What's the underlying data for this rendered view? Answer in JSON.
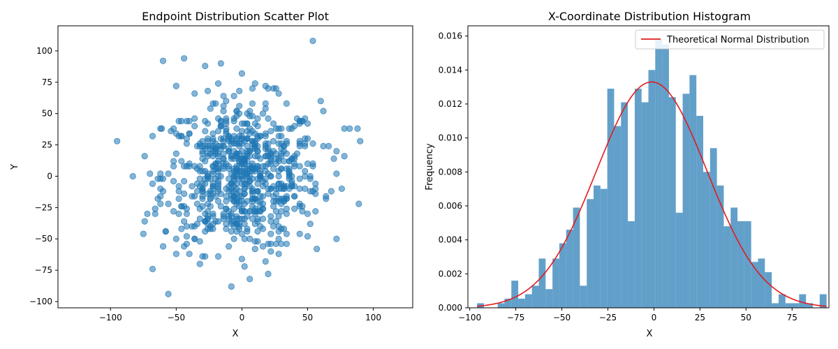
{
  "chart_data": [
    {
      "type": "scatter",
      "title": "Endpoint Distribution Scatter Plot",
      "xlabel": "X",
      "ylabel": "Y",
      "xlim": [
        -140,
        130
      ],
      "ylim": [
        -105,
        120
      ],
      "xticks": [
        -100,
        -50,
        0,
        50,
        100
      ],
      "yticks": [
        -100,
        -75,
        -50,
        -25,
        0,
        25,
        50,
        75,
        100
      ],
      "grid": false,
      "point_color": "#1f77b4",
      "point_alpha": 0.55,
      "outliers": [
        {
          "x": 54,
          "y": 108
        },
        {
          "x": -60,
          "y": 92
        },
        {
          "x": -44,
          "y": 94
        },
        {
          "x": -28,
          "y": 88
        },
        {
          "x": -16,
          "y": 90
        },
        {
          "x": -50,
          "y": 72
        },
        {
          "x": 0,
          "y": 82
        },
        {
          "x": -56,
          "y": -94
        },
        {
          "x": -68,
          "y": -74
        },
        {
          "x": -8,
          "y": -88
        },
        {
          "x": 6,
          "y": -82
        },
        {
          "x": 20,
          "y": -78
        },
        {
          "x": -95,
          "y": 28
        },
        {
          "x": 90,
          "y": 28
        },
        {
          "x": 88,
          "y": 38
        },
        {
          "x": 89,
          "y": -22
        },
        {
          "x": -83,
          "y": 0
        },
        {
          "x": -75,
          "y": -46
        },
        {
          "x": 78,
          "y": 38
        },
        {
          "x": 82,
          "y": 38
        },
        {
          "x": -74,
          "y": 16
        },
        {
          "x": -72,
          "y": -30
        },
        {
          "x": 76,
          "y": -10
        },
        {
          "x": 78,
          "y": 16
        },
        {
          "x": -61,
          "y": 38
        },
        {
          "x": 57,
          "y": -58
        }
      ],
      "cluster": {
        "count": 740,
        "x_sd": 30,
        "y_sd": 30,
        "x_range": [
          -75,
          75
        ],
        "y_range": [
          -75,
          75
        ],
        "grid_step": 2
      }
    },
    {
      "type": "bar",
      "title": "X-Coordinate Distribution Histogram",
      "xlabel": "X",
      "ylabel": "Frequency",
      "xlim": [
        -101,
        95
      ],
      "ylim": [
        0,
        0.0166
      ],
      "xticks": [
        -100,
        -75,
        -50,
        -25,
        0,
        25,
        50,
        75
      ],
      "yticks": [
        0.0,
        0.002,
        0.004,
        0.006,
        0.008,
        0.01,
        0.012,
        0.014,
        0.016
      ],
      "bar_color": "#1f77b4",
      "bar_alpha": 0.7,
      "bin_start": -96,
      "bin_width": 3.72,
      "values": [
        0.00027,
        0.0,
        0.0,
        0.00027,
        0.00054,
        0.0016,
        0.00054,
        0.0008,
        0.0013,
        0.0029,
        0.0011,
        0.0029,
        0.0038,
        0.0046,
        0.0059,
        0.0013,
        0.0064,
        0.0072,
        0.007,
        0.0129,
        0.0107,
        0.0121,
        0.0051,
        0.0129,
        0.0121,
        0.014,
        0.0158,
        0.0155,
        0.0124,
        0.0056,
        0.0126,
        0.0137,
        0.0113,
        0.008,
        0.0094,
        0.0072,
        0.0048,
        0.0059,
        0.0051,
        0.0051,
        0.0027,
        0.0029,
        0.0021,
        0.00027,
        0.0008,
        0.00027,
        0.00027,
        0.0008,
        0.00027,
        0.0,
        0.0008
      ],
      "series": [
        {
          "name": "Theoretical Normal Distribution",
          "type": "line",
          "color": "#e31a1c",
          "mean": -1.2,
          "sd": 30
        }
      ],
      "legend_position": "top-right"
    }
  ]
}
